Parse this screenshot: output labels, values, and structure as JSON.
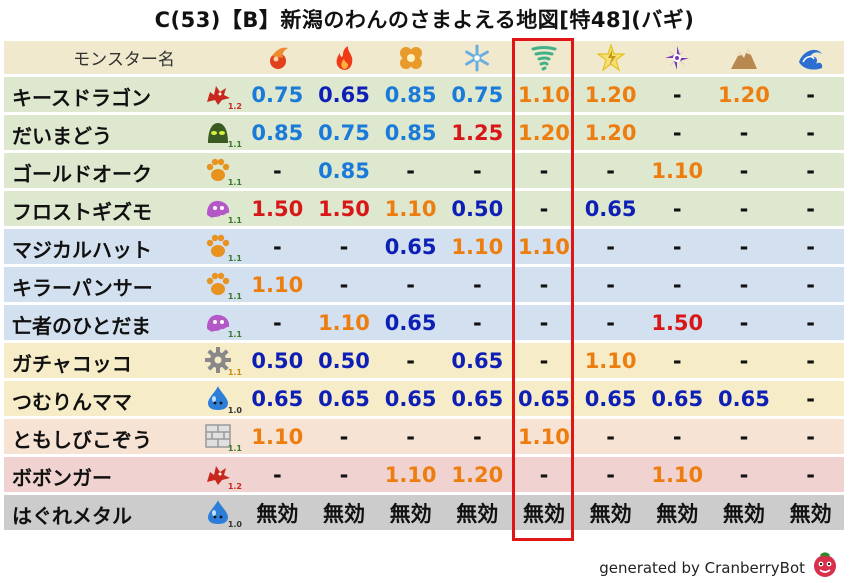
{
  "title": "C(53)【B】新潟のわんのさまよえる地図[特48](バギ)",
  "header": {
    "name_label": "モンスター名"
  },
  "columns": [
    {
      "icon": "fire-orb-icon",
      "color": "#e0401b"
    },
    {
      "icon": "flame-icon",
      "color": "#ef3a16"
    },
    {
      "icon": "explosion-icon",
      "color": "#e89a2a"
    },
    {
      "icon": "snowflake-icon",
      "color": "#6aaee0"
    },
    {
      "icon": "tornado-icon",
      "color": "#44b08a"
    },
    {
      "icon": "lightning-icon",
      "color": "#e6c21e"
    },
    {
      "icon": "dark-swirl-icon",
      "color": "#7a3ab8"
    },
    {
      "icon": "earth-mountain-icon",
      "color": "#b88850"
    },
    {
      "icon": "light-wave-icon",
      "color": "#2c6fd1"
    }
  ],
  "highlight_column": 5,
  "value_colors": {
    "0.50": "#0d1fb5",
    "0.65": "#0d1fb5",
    "0.75": "#1a7ad9",
    "0.85": "#1a7ad9",
    "1.10": "#ee7d10",
    "1.20": "#ee7d10",
    "1.25": "#d81818",
    "1.50": "#d81818",
    "-": "#111111",
    "無効": "#111111"
  },
  "rows": [
    {
      "name": "キースドラゴン",
      "bg": "#dde8cf",
      "icon": "dragon-icon",
      "icon_color": "#c8281e",
      "level": "1.2",
      "level_color": "#c8281e",
      "values": [
        "0.75",
        "0.65",
        "0.85",
        "0.75",
        "1.10",
        "1.20",
        "-",
        "1.20",
        "-"
      ]
    },
    {
      "name": "だいまどう",
      "bg": "#dde8cf",
      "icon": "slime-icon",
      "icon_color": "#3a5a22",
      "level": "1.1",
      "level_color": "#3a7a2a",
      "values": [
        "0.85",
        "0.75",
        "0.85",
        "1.25",
        "1.20",
        "1.20",
        "-",
        "-",
        "-"
      ]
    },
    {
      "name": "ゴールドオーク",
      "bg": "#dde8cf",
      "icon": "beast-paw-icon",
      "icon_color": "#e89220",
      "level": "1.1",
      "level_color": "#3a7a2a",
      "values": [
        "-",
        "0.85",
        "-",
        "-",
        "-",
        "-",
        "1.10",
        "-",
        "-"
      ]
    },
    {
      "name": "フロストギズモ",
      "bg": "#dde8cf",
      "icon": "purple-ghost-icon",
      "icon_color": "#b458c8",
      "level": "1.1",
      "level_color": "#3a7a2a",
      "values": [
        "1.50",
        "1.50",
        "1.10",
        "0.50",
        "-",
        "0.65",
        "-",
        "-",
        "-"
      ]
    },
    {
      "name": "マジカルハット",
      "bg": "#d3e0ef",
      "icon": "beast-paw-icon",
      "icon_color": "#e89220",
      "level": "1.1",
      "level_color": "#3a7a2a",
      "values": [
        "-",
        "-",
        "0.65",
        "1.10",
        "1.10",
        "-",
        "-",
        "-",
        "-"
      ]
    },
    {
      "name": "キラーパンサー",
      "bg": "#d3e0ef",
      "icon": "beast-paw-icon",
      "icon_color": "#e89220",
      "level": "1.1",
      "level_color": "#3a7a2a",
      "values": [
        "1.10",
        "-",
        "-",
        "-",
        "-",
        "-",
        "-",
        "-",
        "-"
      ]
    },
    {
      "name": "亡者のひとだま",
      "bg": "#d3e0ef",
      "icon": "purple-ghost-icon",
      "icon_color": "#b458c8",
      "level": "1.1",
      "level_color": "#3a7a2a",
      "values": [
        "-",
        "1.10",
        "0.65",
        "-",
        "-",
        "-",
        "1.50",
        "-",
        "-"
      ]
    },
    {
      "name": "ガチャコッコ",
      "bg": "#f7ecc8",
      "icon": "gear-icon",
      "icon_color": "#888888",
      "level": "1.1",
      "level_color": "#c88a1a",
      "values": [
        "0.50",
        "0.50",
        "-",
        "0.65",
        "-",
        "1.10",
        "-",
        "-",
        "-"
      ]
    },
    {
      "name": "つむりんママ",
      "bg": "#f7ecc8",
      "icon": "blue-slime-icon",
      "icon_color": "#2d7ed8",
      "level": "1.0",
      "level_color": "#333333",
      "values": [
        "0.65",
        "0.65",
        "0.65",
        "0.65",
        "0.65",
        "0.65",
        "0.65",
        "0.65",
        "-"
      ]
    },
    {
      "name": "ともしびこぞう",
      "bg": "#f6e3d3",
      "icon": "brick-icon",
      "icon_color": "#999999",
      "level": "1.1",
      "level_color": "#3a7a2a",
      "values": [
        "1.10",
        "-",
        "-",
        "-",
        "1.10",
        "-",
        "-",
        "-",
        "-"
      ]
    },
    {
      "name": "ボボンガー",
      "bg": "#f0d3d0",
      "icon": "dragon-icon",
      "icon_color": "#c8281e",
      "level": "1.2",
      "level_color": "#c8281e",
      "values": [
        "-",
        "-",
        "1.10",
        "1.20",
        "-",
        "-",
        "1.10",
        "-",
        "-"
      ]
    },
    {
      "name": "はぐれメタル",
      "bg": "#cccccc",
      "icon": "blue-slime-icon",
      "icon_color": "#2d7ed8",
      "level": "1.0",
      "level_color": "#333333",
      "values": [
        "無効",
        "無効",
        "無効",
        "無効",
        "無効",
        "無効",
        "無効",
        "無効",
        "無効"
      ]
    }
  ],
  "footer": "generated by CranberryBot",
  "footer_icon": "cranberry-mascot-icon"
}
